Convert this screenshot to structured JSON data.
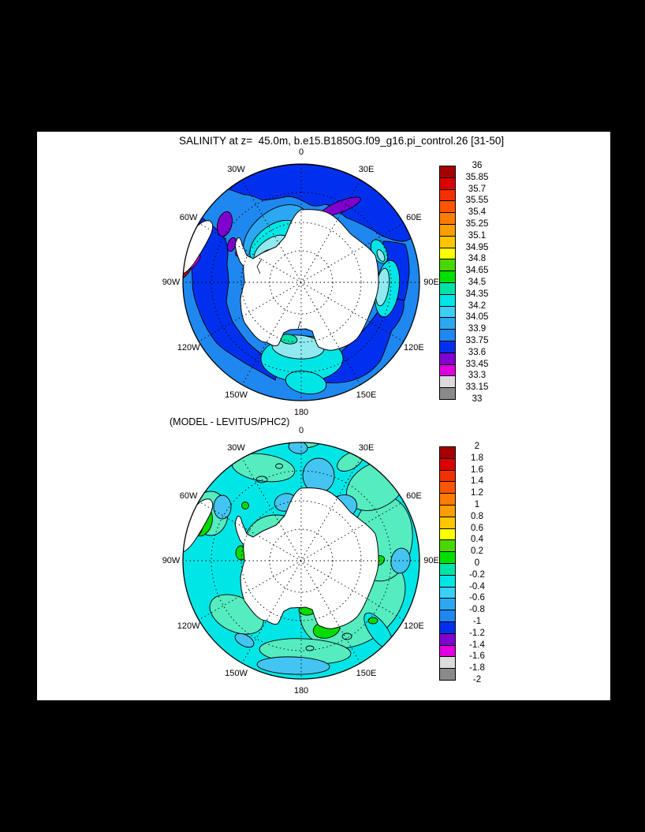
{
  "page": {
    "background_color": "#000000",
    "panel_background_color": "#FFFFFF"
  },
  "title": "SALINITY at z=  45.0m, b.e15.B1850G.f09_g16.pi_control.26 [31-50]",
  "subtitle": "(MODEL - LEVITUS/PHC2)",
  "maps": {
    "projection_labels": [
      "0",
      "30E",
      "60E",
      "90E",
      "120E",
      "150E",
      "180",
      "150W",
      "120W",
      "90W",
      "60W",
      "30W"
    ],
    "label_angles_deg": [
      0,
      30,
      60,
      90,
      120,
      150,
      180,
      210,
      240,
      270,
      300,
      330
    ]
  },
  "map_colors": {
    "land": "#FFFFFF",
    "coastline": "#000000",
    "graticule": "#000000"
  },
  "colorbars": {
    "top": {
      "tick_labels": [
        "36",
        "35.85",
        "35.7",
        "35.55",
        "35.4",
        "35.25",
        "35.1",
        "34.95",
        "34.8",
        "34.65",
        "34.5",
        "34.35",
        "34.2",
        "34.05",
        "33.9",
        "33.75",
        "33.6",
        "33.45",
        "33.3",
        "33.15",
        "33"
      ],
      "colors": [
        "#A50000",
        "#DC0000",
        "#F53000",
        "#FF5500",
        "#FF7C00",
        "#FF9E00",
        "#FFC600",
        "#FFFF00",
        "#48D800",
        "#00E000",
        "#00E2A8",
        "#00E6E6",
        "#3CCFF5",
        "#2CA8F2",
        "#1E88F0",
        "#0030EE",
        "#8000D0",
        "#E000E0",
        "#DCDCDC",
        "#8A8A8A"
      ]
    },
    "bottom": {
      "tick_labels": [
        "2",
        "1.8",
        "1.6",
        "1.4",
        "1.2",
        "1",
        "0.8",
        "0.6",
        "0.4",
        "0.2",
        "0",
        "-0.2",
        "-0.4",
        "-0.6",
        "-0.8",
        "-1",
        "-1.2",
        "-1.4",
        "-1.6",
        "-1.8",
        "-2"
      ],
      "colors": [
        "#A50000",
        "#DC0000",
        "#F53000",
        "#FF5500",
        "#FF7C00",
        "#FF9E00",
        "#FFC600",
        "#FFFF00",
        "#48D800",
        "#00E000",
        "#00E2A8",
        "#00E6E6",
        "#3CCFF5",
        "#2CA8F2",
        "#1E88F0",
        "#0030EE",
        "#8000D0",
        "#E000E0",
        "#DCDCDC",
        "#8A8A8A"
      ]
    }
  },
  "chart_data": [
    {
      "type": "heatmap",
      "subtype": "south-polar-stereographic contour map",
      "title": "SALINITY at z=  45.0m, b.e15.B1850G.f09_g16.pi_control.26 [31-50]",
      "longitude_ring_labels": [
        "0",
        "30E",
        "60E",
        "90E",
        "120E",
        "150E",
        "180",
        "150W",
        "120W",
        "90W",
        "60W",
        "30W"
      ],
      "contour_levels": {
        "min": 33,
        "max": 36,
        "step": 0.15
      },
      "colorbar_tick_labels": [
        "36",
        "35.85",
        "35.7",
        "35.55",
        "35.4",
        "35.25",
        "35.1",
        "34.95",
        "34.8",
        "34.65",
        "34.5",
        "34.35",
        "34.2",
        "34.05",
        "33.9",
        "33.75",
        "33.6",
        "33.45",
        "33.3",
        "33.15",
        "33"
      ],
      "palette_top_to_bottom": [
        "#A50000",
        "#DC0000",
        "#F53000",
        "#FF5500",
        "#FF7C00",
        "#FF9E00",
        "#FFC600",
        "#FFFF00",
        "#48D800",
        "#00E000",
        "#00E2A8",
        "#00E6E6",
        "#3CCFF5",
        "#2CA8F2",
        "#1E88F0",
        "#0030EE",
        "#8000D0",
        "#E000E0",
        "#DCDCDC",
        "#8A8A8A"
      ],
      "legend_position": "right",
      "described_field": "Southern Ocean salinity: open ocean mostly 33.6-34.05 (blue bands), 34.05-34.5 cyan/turquoise tongues in Weddell and Ross Sea sectors, small 33.3-33.6 purple/magenta patches near 40E and the Antarctic Peninsula, green spot (34.65-34.8) at the Ross Sea coast, Antarctica masked in white"
    },
    {
      "type": "heatmap",
      "subtype": "south-polar-stereographic contour map",
      "title": "(MODEL - LEVITUS/PHC2)",
      "longitude_ring_labels": [
        "0",
        "30E",
        "60E",
        "90E",
        "120E",
        "150E",
        "180",
        "150W",
        "120W",
        "90W",
        "60W",
        "30W"
      ],
      "contour_levels": {
        "min": -2,
        "max": 2,
        "step": 0.2
      },
      "colorbar_tick_labels": [
        "2",
        "1.8",
        "1.6",
        "1.4",
        "1.2",
        "1",
        "0.8",
        "0.6",
        "0.4",
        "0.2",
        "0",
        "-0.2",
        "-0.4",
        "-0.6",
        "-0.8",
        "-1",
        "-1.2",
        "-1.4",
        "-1.6",
        "-1.8",
        "-2"
      ],
      "palette_top_to_bottom": [
        "#A50000",
        "#DC0000",
        "#F53000",
        "#FF5500",
        "#FF7C00",
        "#FF9E00",
        "#FFC600",
        "#FFFF00",
        "#48D800",
        "#00E000",
        "#00E2A8",
        "#00E6E6",
        "#3CCFF5",
        "#2CA8F2",
        "#1E88F0",
        "#0030EE",
        "#8000D0",
        "#E000E0",
        "#DCDCDC",
        "#8A8A8A"
      ],
      "legend_position": "right",
      "described_field": "Model-minus-observations difference: mostly -0.4 to 0 (cyan/turquoise), scattered -0.4 to -0.8 light-blue patches, green 0-0.2 spots along the coast and Ross Sea, localized positive anomalies up to ~1.2 (green/yellow/orange) off southern South America"
    }
  ]
}
